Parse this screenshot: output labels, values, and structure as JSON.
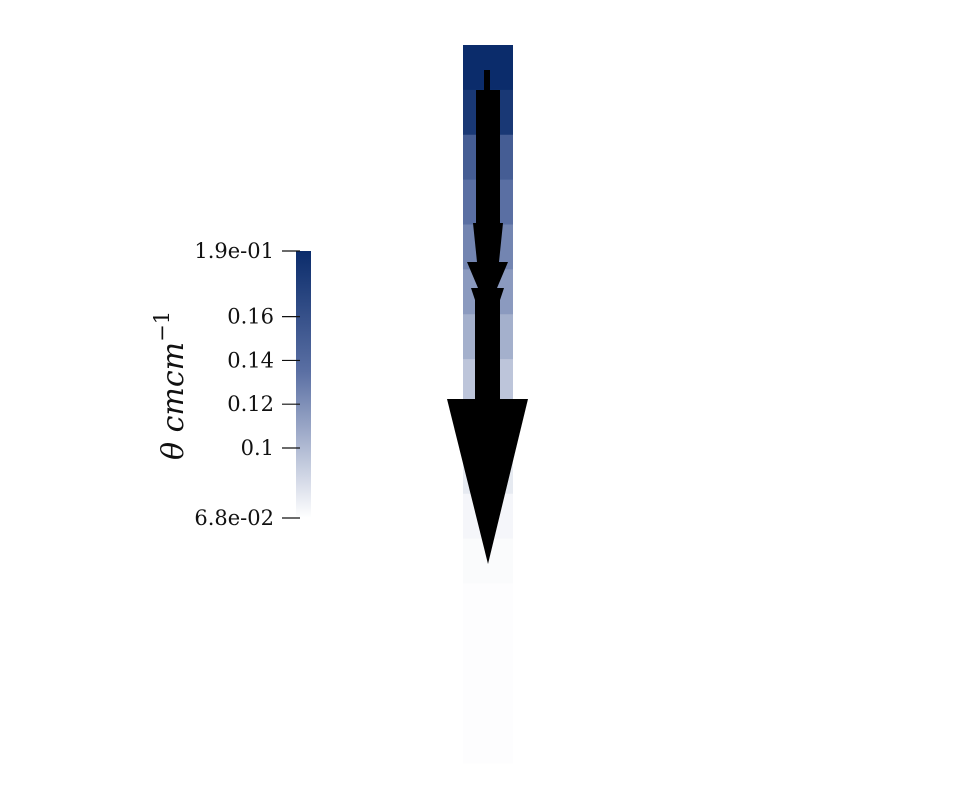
{
  "colorbar": {
    "title_symbol": "θ cmcm",
    "title_exponent": "−1",
    "range": [
      0.068,
      0.19
    ],
    "colors": {
      "high": "#0b2c6b",
      "mid": "#5a6fa3",
      "low": "#ffffff"
    },
    "ticks": [
      {
        "label": "1.9e-01",
        "value": 0.19
      },
      {
        "label": "0.16",
        "value": 0.16
      },
      {
        "label": "0.14",
        "value": 0.14
      },
      {
        "label": "0.12",
        "value": 0.12
      },
      {
        "label": "0.1",
        "value": 0.1
      },
      {
        "label": "6.8e-02",
        "value": 0.068
      }
    ]
  },
  "column": {
    "segments": [
      {
        "value": 0.19
      },
      {
        "value": 0.18
      },
      {
        "value": 0.15
      },
      {
        "value": 0.135
      },
      {
        "value": 0.125
      },
      {
        "value": 0.115
      },
      {
        "value": 0.105
      },
      {
        "value": 0.095
      },
      {
        "value": 0.085
      },
      {
        "value": 0.078
      },
      {
        "value": 0.072
      },
      {
        "value": 0.07
      },
      {
        "value": 0.069
      },
      {
        "value": 0.069
      },
      {
        "value": 0.069
      },
      {
        "value": 0.069
      }
    ]
  },
  "arrow": {
    "direction": "down",
    "color": "#000000"
  }
}
